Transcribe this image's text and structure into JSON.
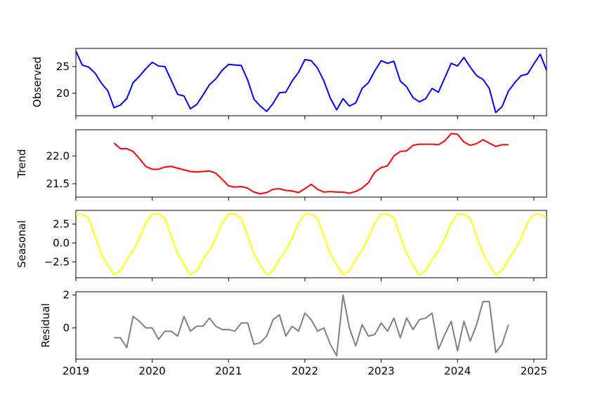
{
  "chart_data": [
    {
      "type": "line",
      "ylabel": "Observed",
      "color": "#0000ff",
      "x_start": "2019-01",
      "x": [
        "2019-01",
        "2019-02",
        "2019-03",
        "2019-04",
        "2019-05",
        "2019-06",
        "2019-07",
        "2019-08",
        "2019-09",
        "2019-10",
        "2019-11",
        "2019-12",
        "2020-01",
        "2020-02",
        "2020-03",
        "2020-04",
        "2020-05",
        "2020-06",
        "2020-07",
        "2020-08",
        "2020-09",
        "2020-10",
        "2020-11",
        "2020-12",
        "2021-01",
        "2021-02",
        "2021-03",
        "2021-04",
        "2021-05",
        "2021-06",
        "2021-07",
        "2021-08",
        "2021-09",
        "2021-10",
        "2021-11",
        "2021-12",
        "2022-01",
        "2022-02",
        "2022-03",
        "2022-04",
        "2022-05",
        "2022-06",
        "2022-07",
        "2022-08",
        "2022-09",
        "2022-10",
        "2022-11",
        "2022-12",
        "2023-01",
        "2023-02",
        "2023-03",
        "2023-04",
        "2023-05",
        "2023-06",
        "2023-07",
        "2023-08",
        "2023-09",
        "2023-10",
        "2023-11",
        "2023-12",
        "2024-01",
        "2024-02",
        "2024-03",
        "2024-04",
        "2024-05",
        "2024-06",
        "2024-07",
        "2024-08",
        "2024-09",
        "2024-10",
        "2024-11",
        "2024-12",
        "2025-01",
        "2025-02",
        "2025-03"
      ],
      "values": [
        27.9,
        25.3,
        24.9,
        23.8,
        21.9,
        20.5,
        17.3,
        17.8,
        19.0,
        22.0,
        23.2,
        24.6,
        25.8,
        25.1,
        25.0,
        22.4,
        19.8,
        19.5,
        17.1,
        17.9,
        19.7,
        21.6,
        22.7,
        24.3,
        25.4,
        25.3,
        25.2,
        22.5,
        18.9,
        17.6,
        16.6,
        18.1,
        20.1,
        20.2,
        22.3,
        23.9,
        26.3,
        26.1,
        24.7,
        22.3,
        19.1,
        16.9,
        19.0,
        17.6,
        18.2,
        20.9,
        22.0,
        24.2,
        26.1,
        25.6,
        26.0,
        22.3,
        21.2,
        19.2,
        18.4,
        19.0,
        20.9,
        20.2,
        22.9,
        25.6,
        25.1,
        26.7,
        24.9,
        23.3,
        22.6,
        20.9,
        16.4,
        17.5,
        20.4,
        22.0,
        23.3,
        23.6,
        25.5,
        27.3,
        24.3
      ],
      "ylim": [
        15.8,
        28.4
      ],
      "yticks": [
        20,
        25
      ],
      "ytick_labels": [
        "20",
        "25"
      ]
    },
    {
      "type": "line",
      "ylabel": "Trend",
      "color": "#ff0000",
      "x_start": "2019-07",
      "values": [
        22.23,
        22.13,
        22.13,
        22.08,
        21.95,
        21.81,
        21.76,
        21.76,
        21.8,
        21.81,
        21.78,
        21.75,
        21.72,
        21.71,
        21.72,
        21.73,
        21.69,
        21.58,
        21.46,
        21.44,
        21.45,
        21.42,
        21.35,
        21.32,
        21.34,
        21.4,
        21.41,
        21.38,
        21.37,
        21.34,
        21.41,
        21.49,
        21.4,
        21.35,
        21.36,
        21.35,
        21.35,
        21.33,
        21.36,
        21.42,
        21.52,
        21.71,
        21.79,
        21.82,
        22.0,
        22.08,
        22.09,
        22.19,
        22.21,
        22.21,
        22.21,
        22.2,
        22.27,
        22.4,
        22.39,
        22.25,
        22.19,
        22.22,
        22.29,
        22.23,
        22.17,
        22.2,
        22.2
      ],
      "ylim": [
        21.26,
        22.47
      ],
      "yticks": [
        21.5,
        22.0
      ],
      "ytick_labels": [
        "21.5",
        "22.0"
      ]
    },
    {
      "type": "line",
      "ylabel": "Seasonal",
      "color": "#ffff00",
      "x_start": "2019-01",
      "pattern": [
        3.8,
        3.8,
        3.3,
        0.9,
        -1.4,
        -2.9,
        -4.2,
        -3.7,
        -2.2,
        -1.0,
        0.6,
        2.6
      ],
      "ylim": [
        -4.6,
        4.3
      ],
      "yticks": [
        -2.5,
        0.0,
        2.5
      ],
      "ytick_labels": [
        "−2.5",
        "0.0",
        "2.5"
      ]
    },
    {
      "type": "line",
      "ylabel": "Residual",
      "color": "#808080",
      "x_start": "2019-07",
      "values": [
        -0.6,
        -0.6,
        -1.2,
        0.7,
        0.4,
        0.0,
        0.0,
        -0.7,
        -0.2,
        -0.2,
        -0.5,
        0.7,
        -0.2,
        0.1,
        0.1,
        0.6,
        0.1,
        -0.1,
        -0.1,
        -0.2,
        0.3,
        0.3,
        -1.0,
        -0.9,
        -0.5,
        0.5,
        0.8,
        -0.5,
        0.1,
        -0.2,
        0.9,
        0.5,
        -0.2,
        0.0,
        -1.0,
        -1.7,
        2.0,
        0.0,
        -1.1,
        0.2,
        -0.5,
        -0.4,
        0.3,
        -0.2,
        0.6,
        -0.6,
        0.6,
        -0.1,
        0.5,
        0.6,
        0.9,
        -1.3,
        -0.4,
        0.4,
        -1.4,
        0.4,
        -0.8,
        0.2,
        1.6,
        1.6,
        -1.5,
        -1.0,
        0.2
      ],
      "ylim": [
        -1.9,
        2.2
      ],
      "yticks": [
        0,
        2
      ],
      "ytick_labels": [
        "0",
        "2"
      ]
    }
  ],
  "x_axis": {
    "ticks": [
      "2019",
      "2020",
      "2021",
      "2022",
      "2023",
      "2024",
      "2025"
    ],
    "xlim": [
      "2019-01",
      "2025-03"
    ]
  }
}
